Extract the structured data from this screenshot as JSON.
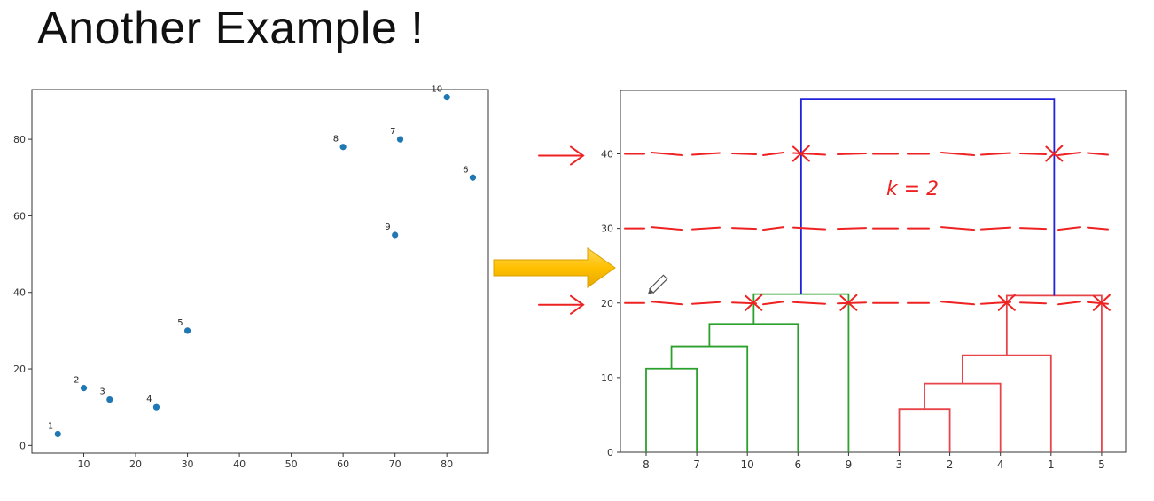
{
  "slide": {
    "title": "Another Example !"
  },
  "colors": {
    "scatter_point": "#1f77b4",
    "cluster_green": "#2ca02c",
    "cluster_red": "#e8454a",
    "root_link": "#2222dd",
    "annotation": "#ee2222",
    "arrow_fill": "#ffc000"
  },
  "chart_data": [
    {
      "type": "scatter",
      "xlim": [
        0,
        88
      ],
      "ylim": [
        -2,
        93
      ],
      "x_ticks": [
        10,
        20,
        30,
        40,
        50,
        60,
        70,
        80
      ],
      "y_ticks": [
        0,
        20,
        40,
        60,
        80
      ],
      "grid": false,
      "points": [
        {
          "label": "1",
          "x": 5,
          "y": 3
        },
        {
          "label": "2",
          "x": 10,
          "y": 15
        },
        {
          "label": "3",
          "x": 15,
          "y": 12
        },
        {
          "label": "4",
          "x": 24,
          "y": 10
        },
        {
          "label": "5",
          "x": 30,
          "y": 30
        },
        {
          "label": "6",
          "x": 85,
          "y": 70
        },
        {
          "label": "7",
          "x": 71,
          "y": 80
        },
        {
          "label": "8",
          "x": 60,
          "y": 78
        },
        {
          "label": "9",
          "x": 70,
          "y": 55
        },
        {
          "label": "10",
          "x": 80,
          "y": 91
        }
      ]
    },
    {
      "type": "dendrogram",
      "ylim": [
        0,
        48.5
      ],
      "y_ticks": [
        0,
        10,
        20,
        30,
        40
      ],
      "leaves": [
        "8",
        "7",
        "10",
        "6",
        "9",
        "3",
        "2",
        "4",
        "1",
        "5"
      ],
      "links": [
        {
          "x": [
            0,
            0,
            1,
            1
          ],
          "y": [
            0,
            11.2,
            11.2,
            0
          ],
          "cluster": "green"
        },
        {
          "x": [
            0.5,
            0.5,
            2,
            2
          ],
          "y": [
            11.2,
            14.2,
            14.2,
            0
          ],
          "cluster": "green"
        },
        {
          "x": [
            1.25,
            1.25,
            3,
            3
          ],
          "y": [
            14.2,
            17.2,
            17.2,
            0
          ],
          "cluster": "green"
        },
        {
          "x": [
            2.125,
            2.125,
            4,
            4
          ],
          "y": [
            17.2,
            21.2,
            21.2,
            0
          ],
          "cluster": "green"
        },
        {
          "x": [
            5,
            5,
            6,
            6
          ],
          "y": [
            0,
            5.8,
            5.8,
            0
          ],
          "cluster": "red"
        },
        {
          "x": [
            5.5,
            5.5,
            7,
            7
          ],
          "y": [
            5.8,
            9.2,
            9.2,
            0
          ],
          "cluster": "red"
        },
        {
          "x": [
            6.25,
            6.25,
            8,
            8
          ],
          "y": [
            9.2,
            13.0,
            13.0,
            0
          ],
          "cluster": "red"
        },
        {
          "x": [
            7.125,
            7.125,
            9,
            9
          ],
          "y": [
            13.0,
            21.0,
            21.0,
            0
          ],
          "cluster": "red"
        },
        {
          "x": [
            3.0625,
            3.0625,
            8.0625,
            8.0625
          ],
          "y": [
            21.2,
            47.3,
            47.3,
            21.0
          ],
          "cluster": "root"
        }
      ],
      "annotations": {
        "cut_lines": [
          {
            "y": 40,
            "marked": true
          },
          {
            "y": 30,
            "marked": false
          },
          {
            "y": 20,
            "marked": true
          }
        ],
        "k_note": "k = 2"
      }
    }
  ]
}
